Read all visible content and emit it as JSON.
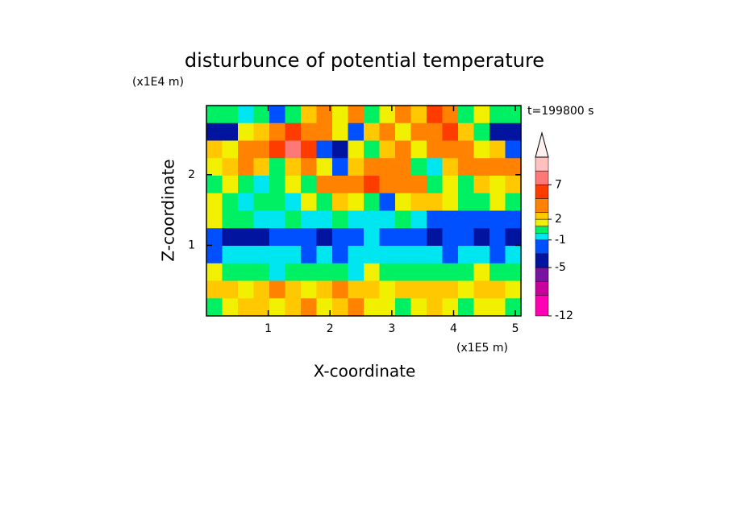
{
  "chart_data": {
    "type": "contour",
    "title": "disturbunce of potential temperature",
    "y_unit": "(x1E4 m)",
    "x_unit": "(x1E5 m)",
    "time_label": "t=199800 s",
    "x_label": "X-coordinate",
    "y_label": "Z-coordinate",
    "xlim": [
      0,
      5.09
    ],
    "ylim": [
      0,
      2.98
    ],
    "xticks": [
      1,
      2,
      3,
      4,
      5
    ],
    "yticks": [
      1,
      2
    ],
    "levels": [
      -12,
      -9,
      -7,
      -5,
      -3,
      -1,
      0,
      1,
      2,
      3,
      5,
      7,
      9,
      11
    ],
    "colors": [
      "#ff00b4",
      "#c8009c",
      "#7814a0",
      "#0014a0",
      "#0050ff",
      "#00e6f0",
      "#00f064",
      "#f0f000",
      "#ffc800",
      "#ff8200",
      "#ff3c00",
      "#ff7878",
      "#ffc0c0"
    ],
    "over_color": "#fff0f0",
    "colorbar_ticks": [
      -12,
      -5,
      -1,
      2,
      7
    ],
    "field": [
      [
        0,
        0,
        -1,
        0,
        -3,
        0,
        2,
        4,
        1,
        3,
        0,
        1,
        3,
        2,
        5,
        4,
        0,
        1,
        0,
        0
      ],
      [
        -4,
        -5,
        1,
        2,
        4,
        6,
        4,
        3,
        1,
        -3,
        2,
        4,
        1,
        3,
        4,
        6,
        2,
        0,
        -4,
        -4
      ],
      [
        2,
        1,
        3,
        4,
        5,
        8,
        6,
        -3,
        -4,
        1,
        0,
        2,
        4,
        1,
        3,
        4,
        3,
        1,
        2,
        -3
      ],
      [
        1,
        2,
        3,
        2,
        0,
        2,
        4,
        1,
        -3,
        2,
        3,
        4,
        3,
        0,
        -1,
        2,
        4,
        3,
        3,
        4
      ],
      [
        0,
        1,
        0,
        -1,
        0,
        1,
        0,
        3,
        4,
        4,
        5,
        4,
        3,
        3,
        0,
        1,
        0,
        2,
        1,
        2
      ],
      [
        1,
        0,
        -1,
        0,
        0,
        -1,
        1,
        0,
        2,
        1,
        0,
        -3,
        1,
        2,
        2,
        1,
        0,
        0,
        1,
        0
      ],
      [
        1,
        0,
        0,
        -1,
        -1,
        0,
        -1,
        -1,
        0,
        -1,
        -1,
        -1,
        0,
        -1,
        -3,
        -3,
        -3,
        -2,
        -3,
        -3
      ],
      [
        -3,
        -4,
        -4,
        -4,
        -3,
        -3,
        -3,
        -4,
        -3,
        -3,
        -1,
        -3,
        -3,
        -3,
        -4,
        -3,
        -3,
        -4,
        -3,
        -4
      ],
      [
        -3,
        -1,
        -1,
        -1,
        -1,
        -1,
        -2,
        -1,
        -3,
        -1,
        -1,
        -1,
        -1,
        -1,
        -1,
        -3,
        -1,
        -1,
        -2,
        -1
      ],
      [
        1,
        0,
        0,
        0,
        -1,
        0,
        0,
        0,
        0,
        -1,
        1,
        0,
        0,
        0,
        0,
        0,
        0,
        1,
        0,
        0
      ],
      [
        2,
        2,
        1,
        2,
        3,
        2,
        1,
        2,
        3,
        2,
        2,
        1,
        2,
        2,
        2,
        2,
        1,
        2,
        2,
        1
      ],
      [
        0,
        1,
        2,
        2,
        1,
        2,
        3,
        1,
        2,
        3,
        1,
        1,
        0,
        1,
        2,
        1,
        0,
        1,
        1,
        0
      ]
    ]
  }
}
